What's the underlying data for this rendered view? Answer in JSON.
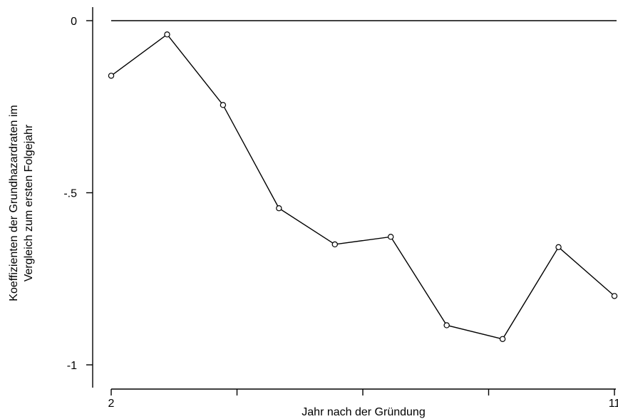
{
  "chart_data": {
    "type": "line",
    "title": "",
    "xlabel": "Jahr nach der Gründung",
    "ylabel_lines": [
      "Koeffizienten der Grundhazardraten im",
      "Vergleich zum ersten Folgejahr"
    ],
    "x": [
      2,
      3,
      4,
      5,
      6,
      7,
      8,
      9,
      10,
      11
    ],
    "series": [
      {
        "values": [
          -0.16,
          -0.04,
          -0.245,
          -0.545,
          -0.65,
          -0.628,
          -0.885,
          -0.925,
          -0.658,
          -0.8
        ]
      }
    ],
    "xlim": [
      2,
      11
    ],
    "ylim": [
      -1,
      0
    ],
    "x_tick_labels": [
      {
        "value": 2,
        "label": "2"
      },
      {
        "value": 11,
        "label": "11"
      }
    ],
    "x_minor_ticks": [
      4.25,
      6.5,
      8.75
    ],
    "y_ticks": [
      {
        "value": 0,
        "label": "0"
      },
      {
        "value": -0.5,
        "label": "-.5"
      },
      {
        "value": -1,
        "label": "-1"
      }
    ],
    "reference_line": 0,
    "grid": false,
    "marker": "open-circle",
    "line_color": "#000000"
  }
}
